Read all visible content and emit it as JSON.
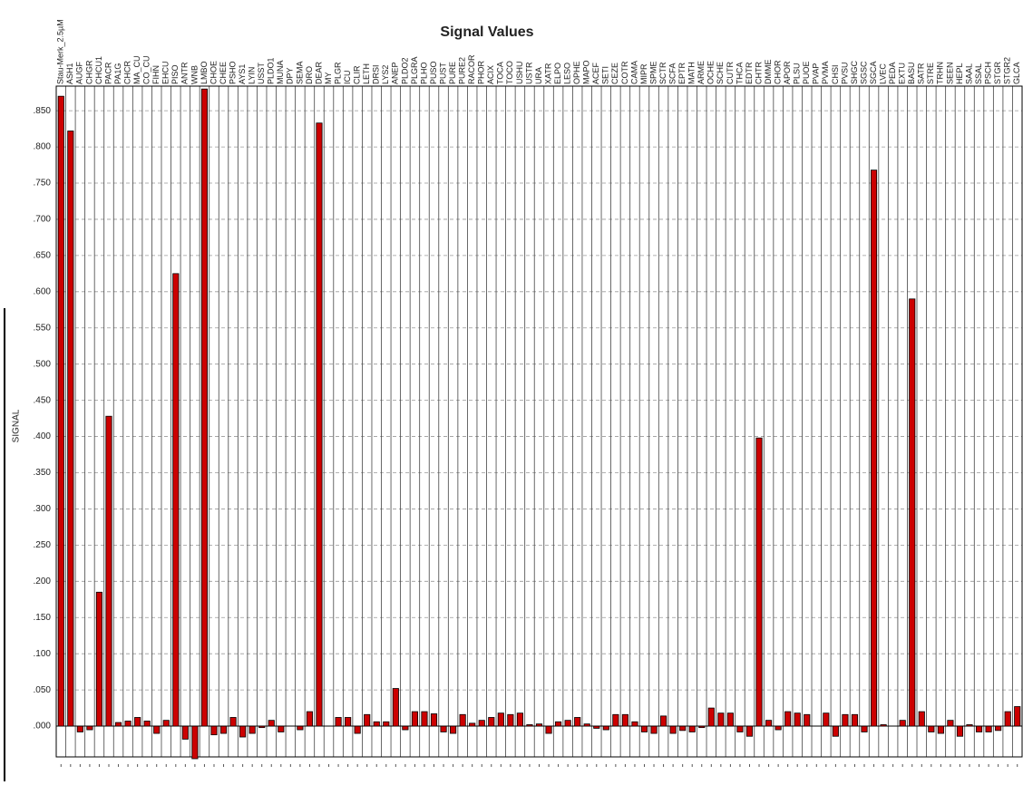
{
  "chart_data": {
    "type": "bar",
    "title": "Signal Values",
    "y_label": "SIGNAL",
    "categories": [
      "Stau-Merk_2.5µM",
      "ASH1",
      "AUGF",
      "CHGR",
      "CHCU1",
      "PACR",
      "PA1G",
      "CHCR",
      "MA_CU",
      "CO_CU",
      "FIHN",
      "EHCU",
      "PISO",
      "ANTR",
      "WNB",
      "LMBO",
      "CHOE",
      "CHEE",
      "PSHO",
      "AYS1",
      "LYIN",
      "USST",
      "PLDO1",
      "MUNA",
      "DPY",
      "SEMA",
      "DRO",
      "DEAR",
      "MY",
      "PLGR",
      "ICU",
      "CLIR",
      "LETH",
      "DRSI",
      "LYS2",
      "ANEP",
      "PLDO2",
      "PLGRA",
      "PLHO",
      "PUSO",
      "PUST",
      "PURE",
      "PURE2",
      "RACOR",
      "PHOR",
      "ACIX",
      "TOCA",
      "TOCO",
      "USHU",
      "USTR",
      "URA",
      "XATR",
      "ELPO",
      "LESO",
      "OPHE",
      "MAPO",
      "ACEF",
      "SETI",
      "CEZE",
      "COTR",
      "CAMA",
      "MIPR",
      "SPME",
      "SCTR",
      "SCFA",
      "EPTR",
      "MATH",
      "ARME",
      "OCHE",
      "SCHE",
      "CUTR",
      "THCA",
      "EDTR",
      "CHTR",
      "DMME",
      "CHOR",
      "APOR",
      "PLSU",
      "PUOE",
      "PVAP",
      "PVMA",
      "CHSI",
      "PVSU",
      "SHGC",
      "SGSC",
      "SGCA",
      "LVEC",
      "PEDA",
      "EXTU",
      "BASU",
      "SATR",
      "STRE",
      "TRHN",
      "SEEN",
      "HEPL",
      "SAAL",
      "SSAL",
      "PSCH",
      "STGR",
      "STGR2",
      "GLCA"
    ],
    "values": [
      0.87,
      0.822,
      -0.008,
      -0.005,
      0.185,
      0.428,
      0.005,
      0.007,
      0.012,
      0.007,
      -0.01,
      0.008,
      0.625,
      -0.018,
      -0.045,
      0.88,
      -0.012,
      -0.01,
      0.012,
      -0.015,
      -0.01,
      -0.002,
      0.008,
      -0.008,
      0,
      -0.005,
      0.02,
      0.833,
      0,
      0.012,
      0.012,
      -0.01,
      0.016,
      0.006,
      0.006,
      0.052,
      -0.005,
      0.02,
      0.02,
      0.017,
      -0.008,
      -0.01,
      0.016,
      0.004,
      0.008,
      0.012,
      0.018,
      0.016,
      0.018,
      0.002,
      0.003,
      -0.01,
      0.006,
      0.008,
      0.012,
      0.003,
      -0.003,
      -0.005,
      0.016,
      0.016,
      0.006,
      -0.008,
      -0.01,
      0.014,
      -0.01,
      -0.006,
      -0.008,
      -0.002,
      0.025,
      0.018,
      0.018,
      -0.008,
      -0.014,
      0.398,
      0.008,
      -0.005,
      0.02,
      0.018,
      0.016,
      0,
      0.018,
      -0.014,
      0.016,
      0.016,
      -0.008,
      0.768,
      0.002,
      0,
      0.008,
      0.59,
      0.02,
      -0.008,
      -0.01,
      0.008,
      -0.014,
      0.002,
      -0.008,
      -0.008,
      -0.006,
      0.02,
      0.027
    ],
    "color": "#cc0000",
    "ylim": [
      -0.0425,
      0.884
    ],
    "yticks": [
      {
        "value": 0,
        "label": ".000"
      },
      {
        "value": 0.05,
        "label": ".050"
      },
      {
        "value": 0.1,
        "label": ".100"
      },
      {
        "value": 0.15,
        "label": ".150"
      },
      {
        "value": 0.2,
        "label": ".200"
      },
      {
        "value": 0.25,
        "label": ".250"
      },
      {
        "value": 0.3,
        "label": ".300"
      },
      {
        "value": 0.35,
        "label": ".350"
      },
      {
        "value": 0.4,
        "label": ".400"
      },
      {
        "value": 0.45,
        "label": ".450"
      },
      {
        "value": 0.5,
        "label": ".500"
      },
      {
        "value": 0.55,
        "label": ".550"
      },
      {
        "value": 0.6,
        "label": ".600"
      },
      {
        "value": 0.65,
        "label": ".650"
      },
      {
        "value": 0.7,
        "label": ".700"
      },
      {
        "value": 0.75,
        "label": ".750"
      },
      {
        "value": 0.8,
        "label": ".800"
      },
      {
        "value": 0.85,
        "label": ".850"
      }
    ],
    "grid": true
  }
}
